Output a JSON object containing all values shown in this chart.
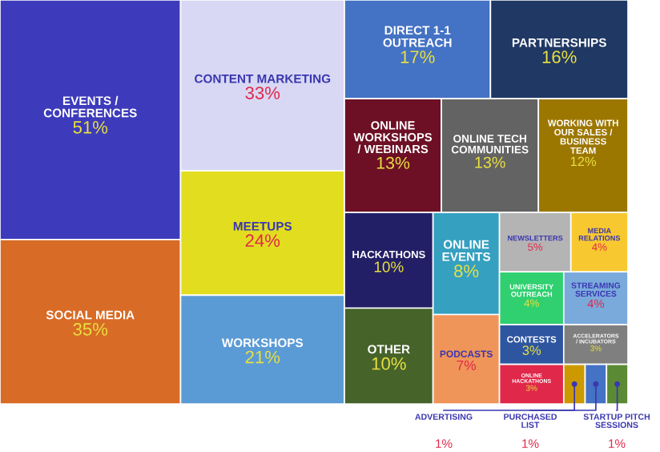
{
  "chart_data": {
    "type": "other",
    "categories": [
      "EVENTS / CONFERENCES",
      "SOCIAL MEDIA",
      "CONTENT MARKETING",
      "MEETUPS",
      "WORKSHOPS",
      "DIRECT 1-1 OUTREACH",
      "PARTNERSHIPS",
      "ONLINE WORKSHOPS / WEBINARS",
      "ONLINE TECH COMMUNITIES",
      "WORKING WITH OUR SALES / BUSINESS TEAM",
      "HACKATHONS",
      "OTHER",
      "ONLINE EVENTS",
      "PODCASTS",
      "NEWSLETTERS",
      "MEDIA RELATIONS",
      "UNIVERSITY OUTREACH",
      "STREAMING SERVICES",
      "CONTESTS",
      "ONLINE HACKATHONS",
      "ACCELERATORS / INCUBATORS",
      "ADVERTISING",
      "PURCHASED LIST",
      "STARTUP PITCH SESSIONS"
    ],
    "values": [
      51,
      35,
      33,
      24,
      21,
      17,
      16,
      13,
      13,
      12,
      10,
      10,
      8,
      7,
      5,
      4,
      4,
      4,
      3,
      3,
      3,
      1,
      1,
      1
    ],
    "value_labels": [
      "51%",
      "35%",
      "33%",
      "24%",
      "21%",
      "17%",
      "16%",
      "13%",
      "13%",
      "12%",
      "10%",
      "10%",
      "8%",
      "7%",
      "5%",
      "4%",
      "4%",
      "4%",
      "3%",
      "3%",
      "3%",
      "1%",
      "1%",
      "1%"
    ],
    "colors": [
      "#3d3bbb",
      "#d86b25",
      "#d8d8f4",
      "#e2dd1f",
      "#5b9bd5",
      "#4472c4",
      "#203864",
      "#6d1025",
      "#636363",
      "#9c7700",
      "#231f66",
      "#46632a",
      "#35a0c0",
      "#f0955a",
      "#b4b4b4",
      "#f8c830",
      "#30d070",
      "#7aaadc",
      "#2e55a0",
      "#e0284a",
      "#7f7f7f",
      "#cc9a00",
      "#4472c4",
      "#5b8a34"
    ]
  }
}
